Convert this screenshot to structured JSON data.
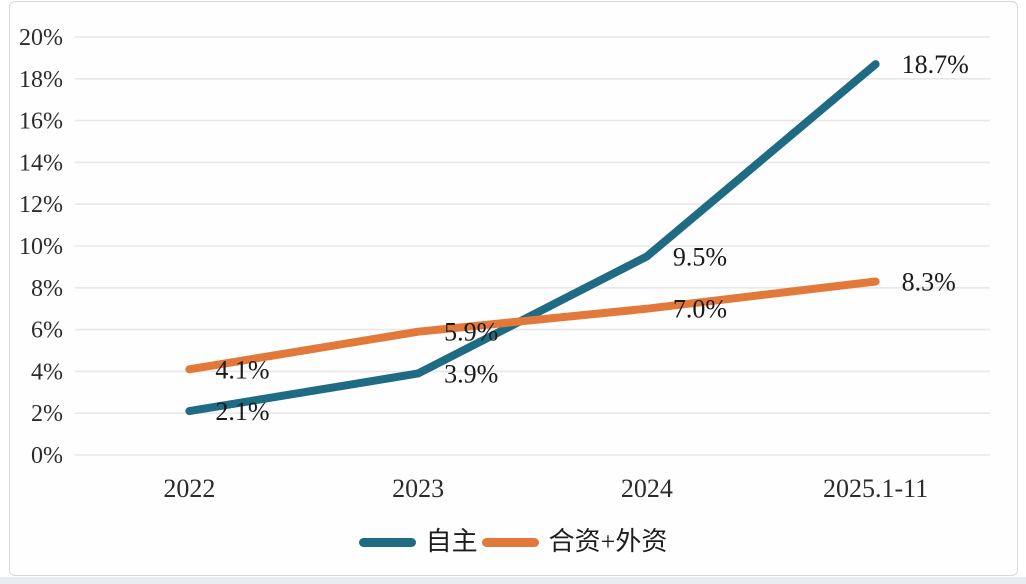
{
  "chart_data": {
    "type": "line",
    "categories": [
      "2022",
      "2023",
      "2024",
      "2025.1-11"
    ],
    "series": [
      {
        "name": "自主",
        "color": "#1F6B84",
        "values": [
          2.1,
          3.9,
          9.5,
          18.7
        ],
        "labels": [
          "2.1%",
          "3.9%",
          "9.5%",
          "18.7%"
        ]
      },
      {
        "name": "合资+外资",
        "color": "#E2793A",
        "values": [
          4.1,
          5.9,
          7.0,
          8.3
        ],
        "labels": [
          "4.1%",
          "5.9%",
          "7.0%",
          "8.3%"
        ]
      }
    ],
    "title": "",
    "xlabel": "",
    "ylabel": "",
    "ylim": [
      0,
      20
    ],
    "y_tick_step": 2,
    "y_ticks": [
      "0%",
      "2%",
      "4%",
      "6%",
      "8%",
      "10%",
      "12%",
      "14%",
      "16%",
      "18%",
      "20%"
    ],
    "grid": true,
    "legend_position": "bottom",
    "colors": {
      "grid": "#e8e8e8",
      "axis_text": "#2b2b2b",
      "label_text": "#1a1a1a",
      "background": "#fefefe",
      "border": "#d9d9d9"
    }
  }
}
